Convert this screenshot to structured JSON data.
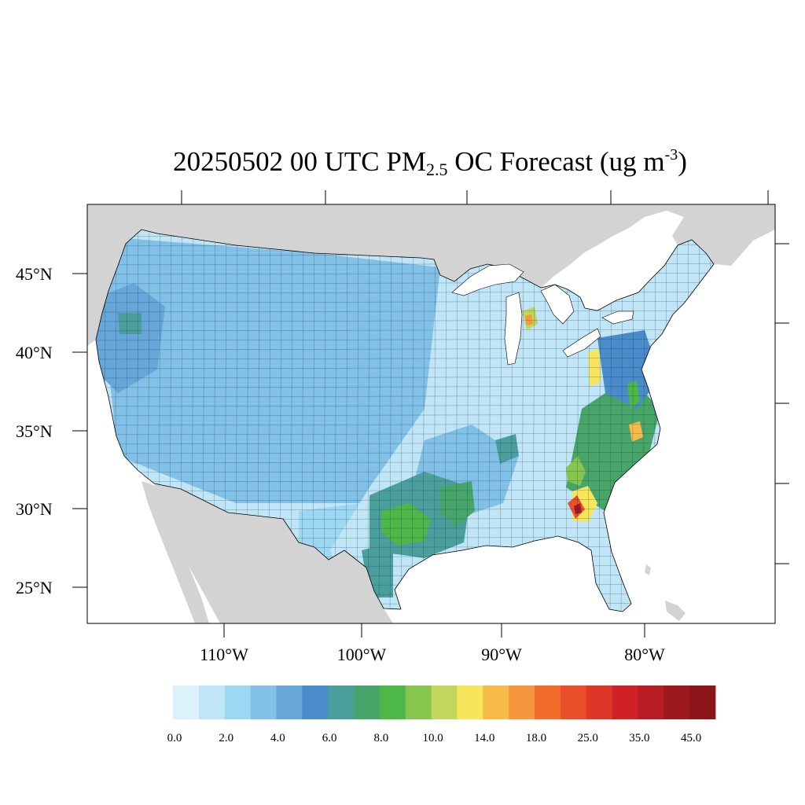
{
  "title": {
    "main": "20250502 00 UTC PM",
    "sub": "2.5",
    "mid": " OC Forecast (ug m",
    "sup": "-3",
    "end": ")"
  },
  "map": {
    "lat_labels": [
      "45°N",
      "40°N",
      "35°N",
      "30°N",
      "25°N"
    ],
    "lon_labels": [
      "110°W",
      "100°W",
      "90°W",
      "80°W"
    ],
    "colors": {
      "ocean": "#ffffff",
      "land_outside": "#d3d3d3",
      "frame": "#000000"
    }
  },
  "regions": [
    {
      "value": 1.2
    },
    {
      "value": 1.0
    },
    {
      "value": 1.5
    },
    {
      "value": 4.5
    },
    {
      "value": 6.5
    },
    {
      "value": 3.0
    },
    {
      "value": 6.5
    },
    {
      "value": 7.5
    },
    {
      "value": 5.5
    },
    {
      "value": 6.5
    },
    {
      "value": 8.5
    },
    {
      "value": 9.5
    },
    {
      "value": 12.0
    },
    {
      "value": 15.0
    },
    {
      "value": 10.5
    },
    {
      "value": 22.0
    },
    {
      "value": 40.0
    },
    {
      "value": 8.5
    },
    {
      "value": 16.0
    },
    {
      "value": 12.0
    },
    {
      "value": 7.5
    },
    {
      "value": 6.5
    },
    {
      "value": 3.5
    },
    {
      "value": 2.5
    }
  ],
  "colorbar": {
    "colors": [
      "#dcf2fb",
      "#bfe5f6",
      "#9dd8f3",
      "#82c1e7",
      "#66a6d9",
      "#4a8bca",
      "#4a9e9c",
      "#47a569",
      "#4db748",
      "#86c54e",
      "#c1d65a",
      "#f7e55c",
      "#f8bb4a",
      "#f6963d",
      "#f26c2c",
      "#ea4e2a",
      "#df3727",
      "#d22027",
      "#b71c23",
      "#9c1a1e",
      "#8b1519"
    ],
    "labels": [
      "0.0",
      "2.0",
      "4.0",
      "6.0",
      "8.0",
      "10.0",
      "14.0",
      "18.0",
      "25.0",
      "35.0",
      "45.0"
    ],
    "thresholds": [
      0,
      1,
      2,
      3,
      4,
      5,
      6,
      7,
      8,
      9,
      10,
      12,
      14,
      16,
      18,
      21,
      25,
      30,
      35,
      40,
      45
    ]
  }
}
